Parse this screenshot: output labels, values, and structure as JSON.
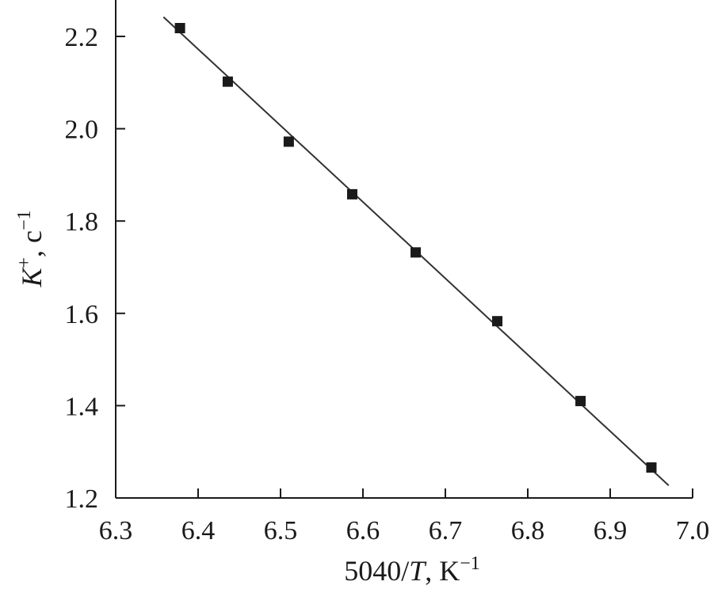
{
  "chart_data": {
    "type": "scatter",
    "xlim": [
      6.3,
      7.0
    ],
    "ylim": [
      1.2,
      2.3
    ],
    "xticks": [
      6.3,
      6.4,
      6.5,
      6.6,
      6.7,
      6.8,
      6.9,
      7.0
    ],
    "yticks": [
      1.2,
      1.4,
      1.6,
      1.8,
      2.0,
      2.2
    ],
    "xtick_labels": [
      "6.3",
      "6.4",
      "6.5",
      "6.6",
      "6.7",
      "6.8",
      "6.9",
      "7.0"
    ],
    "ytick_labels": [
      "1.2",
      "1.4",
      "1.6",
      "1.8",
      "2.0",
      "2.2"
    ],
    "xlabel": {
      "before": "5040/",
      "var": "T",
      "after": ", K",
      "sup": "−1"
    },
    "ylabel": {
      "var": "K",
      "var_sup": "+",
      "after": ", c",
      "sup": "−1"
    },
    "grid": false,
    "points": [
      {
        "x": 6.378,
        "y": 2.218
      },
      {
        "x": 6.436,
        "y": 2.102
      },
      {
        "x": 6.51,
        "y": 1.972
      },
      {
        "x": 6.587,
        "y": 1.858
      },
      {
        "x": 6.664,
        "y": 1.732
      },
      {
        "x": 6.763,
        "y": 1.583
      },
      {
        "x": 6.864,
        "y": 1.41
      },
      {
        "x": 6.95,
        "y": 1.266
      }
    ],
    "fit_line": {
      "x": [
        6.358,
        6.971
      ],
      "y": [
        2.242,
        1.227
      ]
    },
    "colors": {
      "marker": "#1a1a1a",
      "line": "#333333",
      "axis": "#1a1a1a"
    }
  }
}
